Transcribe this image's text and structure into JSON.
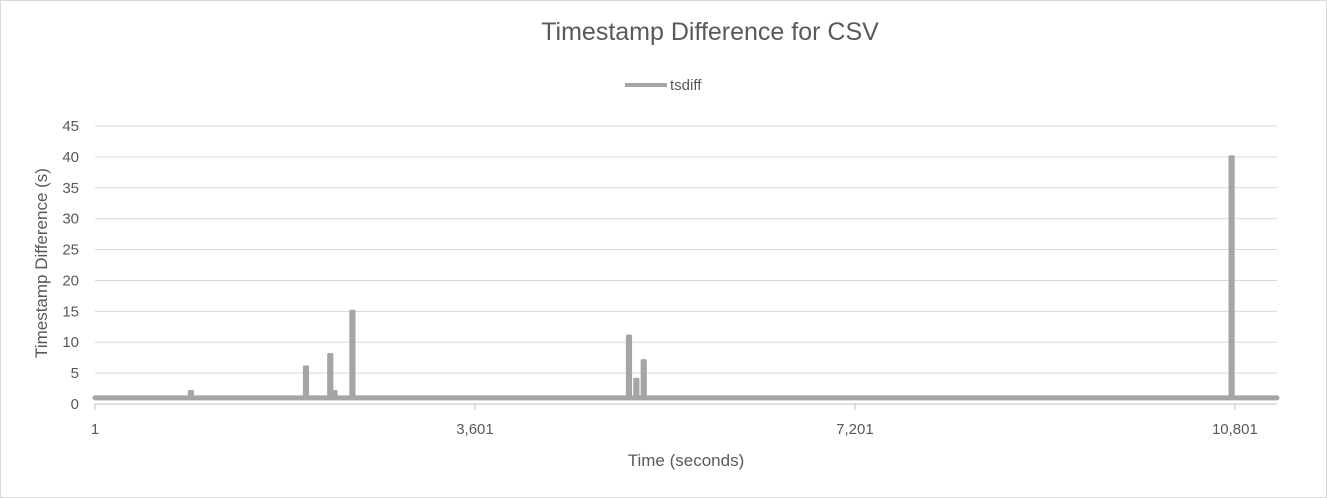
{
  "chart_data": {
    "type": "line",
    "title": "Timestamp Difference for CSV",
    "xlabel": "Time (seconds)",
    "ylabel": "Timestamp Difference (s)",
    "xlim": [
      1,
      11200
    ],
    "ylim": [
      0,
      45
    ],
    "x_ticks": [
      1,
      3601,
      7201,
      10801
    ],
    "x_tick_labels": [
      "1",
      "3,601",
      "7,201",
      "10,801"
    ],
    "y_ticks": [
      0,
      5,
      10,
      15,
      20,
      25,
      30,
      35,
      40,
      45
    ],
    "y_tick_labels": [
      "0",
      "5",
      "10",
      "15",
      "20",
      "25",
      "30",
      "35",
      "40",
      "45"
    ],
    "grid": true,
    "legend_position": "top",
    "series": [
      {
        "name": "tsdiff",
        "color": "#a5a5a5",
        "baseline": 1,
        "spikes": [
          {
            "x": 910,
            "y": 2
          },
          {
            "x": 2000,
            "y": 6
          },
          {
            "x": 2230,
            "y": 8
          },
          {
            "x": 2270,
            "y": 2
          },
          {
            "x": 2440,
            "y": 15
          },
          {
            "x": 5060,
            "y": 11
          },
          {
            "x": 5130,
            "y": 4
          },
          {
            "x": 5200,
            "y": 7
          },
          {
            "x": 10770,
            "y": 40
          }
        ]
      }
    ]
  }
}
